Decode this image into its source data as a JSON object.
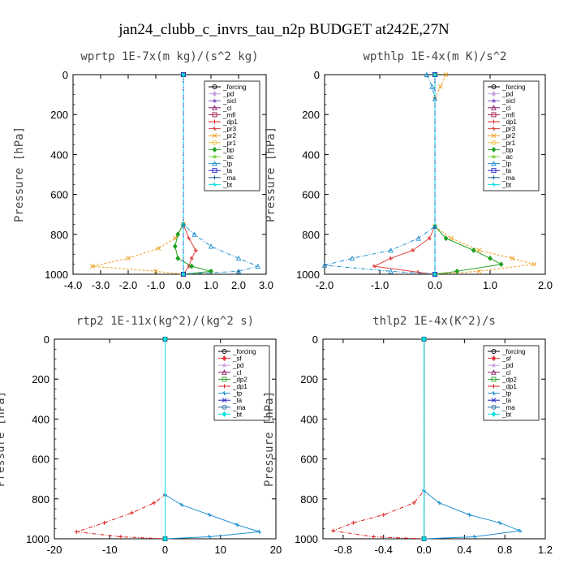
{
  "figure": {
    "title": "jan24_clubb_c_invrs_tau_n2p  BUDGET at242E,27N"
  },
  "colors": {
    "_forcing": "#000000",
    "_sf": "#e8383d",
    "_pd": "#c8a0e0",
    "_sicl": "#8a5ac8",
    "_cl": "#8b1a6b",
    "_mfl": "#a01840",
    "_dp1": "#e02020",
    "_dp2": "#30a030",
    "_pr3": "#e04040",
    "_pr2": "#f0a020",
    "_pr1": "#f0c040",
    "_bp": "#20a020",
    "_ac": "#80d040",
    "_tp": "#2090d0",
    "_ta": "#2020c0",
    "_ma": "#2060a0",
    "_bt": "#00e0e0"
  },
  "chart_data": [
    {
      "type": "line",
      "title": "wprtp   1E-7x(m kg)/(s^2 kg)",
      "ylabel": "Pressure [hPa]",
      "xlim": [
        -4.0,
        3.0
      ],
      "xticks": [
        -4.0,
        -3.0,
        -2.0,
        -1.0,
        0.0,
        1.0,
        2.0,
        3.0
      ],
      "xtick_labels": [
        "-4.0",
        "-3.0",
        "-2.0",
        "-1.0",
        "0.0",
        "1.0",
        "2.0",
        "3.0"
      ],
      "ylim": [
        0,
        1000
      ],
      "yticks": [
        0,
        200,
        400,
        600,
        800,
        1000
      ],
      "ytick_labels": [
        "0",
        "200",
        "400",
        "600",
        "800",
        "1000"
      ],
      "legend": "top-right",
      "series": [
        {
          "name": "_forcing",
          "points": [
            [
              0,
              0
            ],
            [
              0,
              1000
            ]
          ]
        },
        {
          "name": "_pd",
          "points": [
            [
              0,
              0
            ],
            [
              0,
              1000
            ]
          ]
        },
        {
          "name": "_sicl",
          "points": [
            [
              0,
              0
            ],
            [
              0,
              1000
            ]
          ]
        },
        {
          "name": "_cl",
          "points": [
            [
              0,
              0
            ],
            [
              0,
              1000
            ]
          ]
        },
        {
          "name": "_mfl",
          "points": [
            [
              0,
              0
            ],
            [
              0,
              1000
            ]
          ]
        },
        {
          "name": "_dp1",
          "points": [
            [
              0,
              0
            ],
            [
              0,
              1000
            ]
          ]
        },
        {
          "name": "_pr3",
          "points": [
            [
              0,
              0
            ],
            [
              0,
              750
            ],
            [
              0.2,
              820
            ],
            [
              0.45,
              880
            ],
            [
              0.3,
              920
            ],
            [
              0.2,
              960
            ],
            [
              0,
              1000
            ]
          ]
        },
        {
          "name": "_pr2",
          "points": [
            [
              0,
              0
            ],
            [
              0,
              750
            ],
            [
              -0.3,
              820
            ],
            [
              -0.9,
              870
            ],
            [
              -2.0,
              920
            ],
            [
              -3.3,
              960
            ],
            [
              -1.0,
              985
            ],
            [
              0,
              1000
            ]
          ]
        },
        {
          "name": "_pr1",
          "points": [
            [
              0,
              0
            ],
            [
              0,
              1000
            ]
          ]
        },
        {
          "name": "_bp",
          "points": [
            [
              0,
              0
            ],
            [
              0,
              750
            ],
            [
              -0.2,
              800
            ],
            [
              -0.3,
              860
            ],
            [
              -0.2,
              920
            ],
            [
              0.3,
              960
            ],
            [
              1.0,
              985
            ],
            [
              0,
              1000
            ]
          ]
        },
        {
          "name": "_ac",
          "points": [
            [
              0,
              0
            ],
            [
              0,
              1000
            ]
          ]
        },
        {
          "name": "_tp",
          "points": [
            [
              0,
              0
            ],
            [
              0,
              750
            ],
            [
              0.4,
              800
            ],
            [
              1.0,
              860
            ],
            [
              2.0,
              920
            ],
            [
              2.7,
              960
            ],
            [
              2.0,
              985
            ],
            [
              0,
              1000
            ]
          ]
        },
        {
          "name": "_ta",
          "points": [
            [
              0,
              0
            ],
            [
              0,
              1000
            ]
          ]
        },
        {
          "name": "_ma",
          "points": [
            [
              0,
              0
            ],
            [
              0,
              1000
            ]
          ]
        },
        {
          "name": "_bt",
          "points": [
            [
              0,
              0
            ],
            [
              0,
              1000
            ]
          ]
        }
      ]
    },
    {
      "type": "line",
      "title": "wpthlp   1E-4x(m K)/s^2",
      "ylabel": "Pressure [hPa]",
      "xlim": [
        -2.0,
        2.0
      ],
      "xticks": [
        -2.0,
        -1.0,
        0.0,
        1.0,
        2.0
      ],
      "xtick_labels": [
        "-2.0",
        "-1.0",
        "0.0",
        "1.0",
        "2.0"
      ],
      "ylim": [
        0,
        1000
      ],
      "yticks": [
        0,
        200,
        400,
        600,
        800,
        1000
      ],
      "ytick_labels": [
        "0",
        "200",
        "400",
        "600",
        "800",
        "1000"
      ],
      "legend": "top-right",
      "series": [
        {
          "name": "_forcing",
          "points": [
            [
              0,
              0
            ],
            [
              0,
              1000
            ]
          ]
        },
        {
          "name": "_pd",
          "points": [
            [
              0,
              0
            ],
            [
              0,
              1000
            ]
          ]
        },
        {
          "name": "_sicl",
          "points": [
            [
              0,
              0
            ],
            [
              0,
              1000
            ]
          ]
        },
        {
          "name": "_cl",
          "points": [
            [
              0,
              0
            ],
            [
              0,
              1000
            ]
          ]
        },
        {
          "name": "_mfl",
          "points": [
            [
              0,
              0
            ],
            [
              0,
              1000
            ]
          ]
        },
        {
          "name": "_dp1",
          "points": [
            [
              0,
              0
            ],
            [
              0,
              1000
            ]
          ]
        },
        {
          "name": "_pr3",
          "points": [
            [
              0,
              0
            ],
            [
              0,
              760
            ],
            [
              -0.1,
              820
            ],
            [
              -0.4,
              880
            ],
            [
              -0.8,
              920
            ],
            [
              -1.1,
              960
            ],
            [
              -0.3,
              990
            ],
            [
              0,
              1000
            ]
          ]
        },
        {
          "name": "_pr2",
          "points": [
            [
              0.2,
              0
            ],
            [
              0.1,
              60
            ],
            [
              0,
              120
            ],
            [
              0,
              760
            ],
            [
              0.3,
              820
            ],
            [
              0.8,
              880
            ],
            [
              1.4,
              920
            ],
            [
              1.8,
              950
            ],
            [
              0.8,
              985
            ],
            [
              0,
              1000
            ]
          ]
        },
        {
          "name": "_pr1",
          "points": [
            [
              0,
              0
            ],
            [
              0,
              1000
            ]
          ]
        },
        {
          "name": "_bp",
          "points": [
            [
              0,
              0
            ],
            [
              0,
              760
            ],
            [
              0.2,
              820
            ],
            [
              0.7,
              880
            ],
            [
              1.0,
              920
            ],
            [
              1.2,
              950
            ],
            [
              0.4,
              985
            ],
            [
              0,
              1000
            ]
          ]
        },
        {
          "name": "_ac",
          "points": [
            [
              0,
              0
            ],
            [
              0,
              1000
            ]
          ]
        },
        {
          "name": "_tp",
          "points": [
            [
              -0.15,
              0
            ],
            [
              -0.05,
              60
            ],
            [
              0,
              120
            ],
            [
              0,
              760
            ],
            [
              -0.3,
              820
            ],
            [
              -0.8,
              880
            ],
            [
              -1.5,
              920
            ],
            [
              -2.0,
              955
            ],
            [
              -0.8,
              985
            ],
            [
              0,
              1000
            ]
          ]
        },
        {
          "name": "_ta",
          "points": [
            [
              0,
              0
            ],
            [
              0,
              1000
            ]
          ]
        },
        {
          "name": "_ma",
          "points": [
            [
              0,
              0
            ],
            [
              0,
              1000
            ]
          ]
        },
        {
          "name": "_bt",
          "points": [
            [
              0,
              0
            ],
            [
              0,
              1000
            ]
          ]
        }
      ]
    },
    {
      "type": "line",
      "title": "rtp2   1E-11x(kg^2)/(kg^2 s)",
      "ylabel": "Pressure [hPa]",
      "xlim": [
        -20,
        20
      ],
      "xticks": [
        -20,
        -10,
        0,
        10,
        20
      ],
      "xtick_labels": [
        "-20",
        "-10",
        "0",
        "10",
        "20"
      ],
      "ylim": [
        0,
        1000
      ],
      "yticks": [
        0,
        200,
        400,
        600,
        800,
        1000
      ],
      "ytick_labels": [
        "0",
        "200",
        "400",
        "600",
        "800",
        "1000"
      ],
      "legend": "top-right",
      "series": [
        {
          "name": "_forcing",
          "points": [
            [
              0,
              0
            ],
            [
              0,
              1000
            ]
          ]
        },
        {
          "name": "_sf",
          "points": [
            [
              0,
              0
            ],
            [
              0,
              1000
            ]
          ]
        },
        {
          "name": "_pd",
          "points": [
            [
              0,
              0
            ],
            [
              0,
              1000
            ]
          ]
        },
        {
          "name": "_cl",
          "points": [
            [
              0,
              0
            ],
            [
              0,
              1000
            ]
          ]
        },
        {
          "name": "_dp2",
          "points": [
            [
              0,
              0
            ],
            [
              0,
              1000
            ]
          ]
        },
        {
          "name": "_dp1",
          "points": [
            [
              0,
              0
            ],
            [
              0,
              780
            ],
            [
              -2,
              820
            ],
            [
              -6,
              870
            ],
            [
              -11,
              920
            ],
            [
              -16,
              965
            ],
            [
              -8,
              990
            ],
            [
              0,
              1000
            ]
          ]
        },
        {
          "name": "_tp",
          "points": [
            [
              0,
              0
            ],
            [
              0,
              780
            ],
            [
              3,
              830
            ],
            [
              8,
              880
            ],
            [
              13,
              930
            ],
            [
              17,
              965
            ],
            [
              8,
              990
            ],
            [
              0,
              1000
            ]
          ]
        },
        {
          "name": "_ta",
          "points": [
            [
              0,
              0
            ],
            [
              0,
              1000
            ]
          ]
        },
        {
          "name": "_ma",
          "points": [
            [
              0,
              0
            ],
            [
              0,
              1000
            ]
          ]
        },
        {
          "name": "_bt",
          "points": [
            [
              0,
              0
            ],
            [
              0,
              1000
            ]
          ]
        }
      ]
    },
    {
      "type": "line",
      "title": "thlp2   1E-4x(K^2)/s",
      "ylabel": "Pressure [hPa]",
      "xlim": [
        -1.0,
        1.2
      ],
      "xticks": [
        -0.8,
        -0.4,
        0.0,
        0.4,
        0.8,
        1.2
      ],
      "xtick_labels": [
        "-0.8",
        "-0.4",
        "0.0",
        "0.4",
        "0.8",
        "1.2"
      ],
      "ylim": [
        0,
        1000
      ],
      "yticks": [
        0,
        200,
        400,
        600,
        800,
        1000
      ],
      "ytick_labels": [
        "0",
        "200",
        "400",
        "600",
        "800",
        "1000"
      ],
      "legend": "top-right",
      "series": [
        {
          "name": "_forcing",
          "points": [
            [
              0,
              0
            ],
            [
              0,
              1000
            ]
          ]
        },
        {
          "name": "_sf",
          "points": [
            [
              0,
              0
            ],
            [
              0,
              1000
            ]
          ]
        },
        {
          "name": "_pd",
          "points": [
            [
              0,
              0
            ],
            [
              0,
              1000
            ]
          ]
        },
        {
          "name": "_cl",
          "points": [
            [
              0,
              0
            ],
            [
              0,
              1000
            ]
          ]
        },
        {
          "name": "_dp2",
          "points": [
            [
              0,
              0
            ],
            [
              0,
              1000
            ]
          ]
        },
        {
          "name": "_dp1",
          "points": [
            [
              0,
              0
            ],
            [
              0,
              760
            ],
            [
              -0.1,
              820
            ],
            [
              -0.4,
              880
            ],
            [
              -0.7,
              920
            ],
            [
              -0.9,
              960
            ],
            [
              -0.5,
              990
            ],
            [
              0,
              1000
            ]
          ]
        },
        {
          "name": "_tp",
          "points": [
            [
              0,
              0
            ],
            [
              0,
              760
            ],
            [
              0.15,
              820
            ],
            [
              0.45,
              880
            ],
            [
              0.75,
              920
            ],
            [
              0.95,
              960
            ],
            [
              0.5,
              990
            ],
            [
              0,
              1000
            ]
          ]
        },
        {
          "name": "_ta",
          "points": [
            [
              0,
              0
            ],
            [
              0,
              1000
            ]
          ]
        },
        {
          "name": "_ma",
          "points": [
            [
              0,
              0
            ],
            [
              0,
              1000
            ]
          ]
        },
        {
          "name": "_bt",
          "points": [
            [
              0,
              0
            ],
            [
              0,
              1000
            ]
          ]
        }
      ]
    }
  ]
}
